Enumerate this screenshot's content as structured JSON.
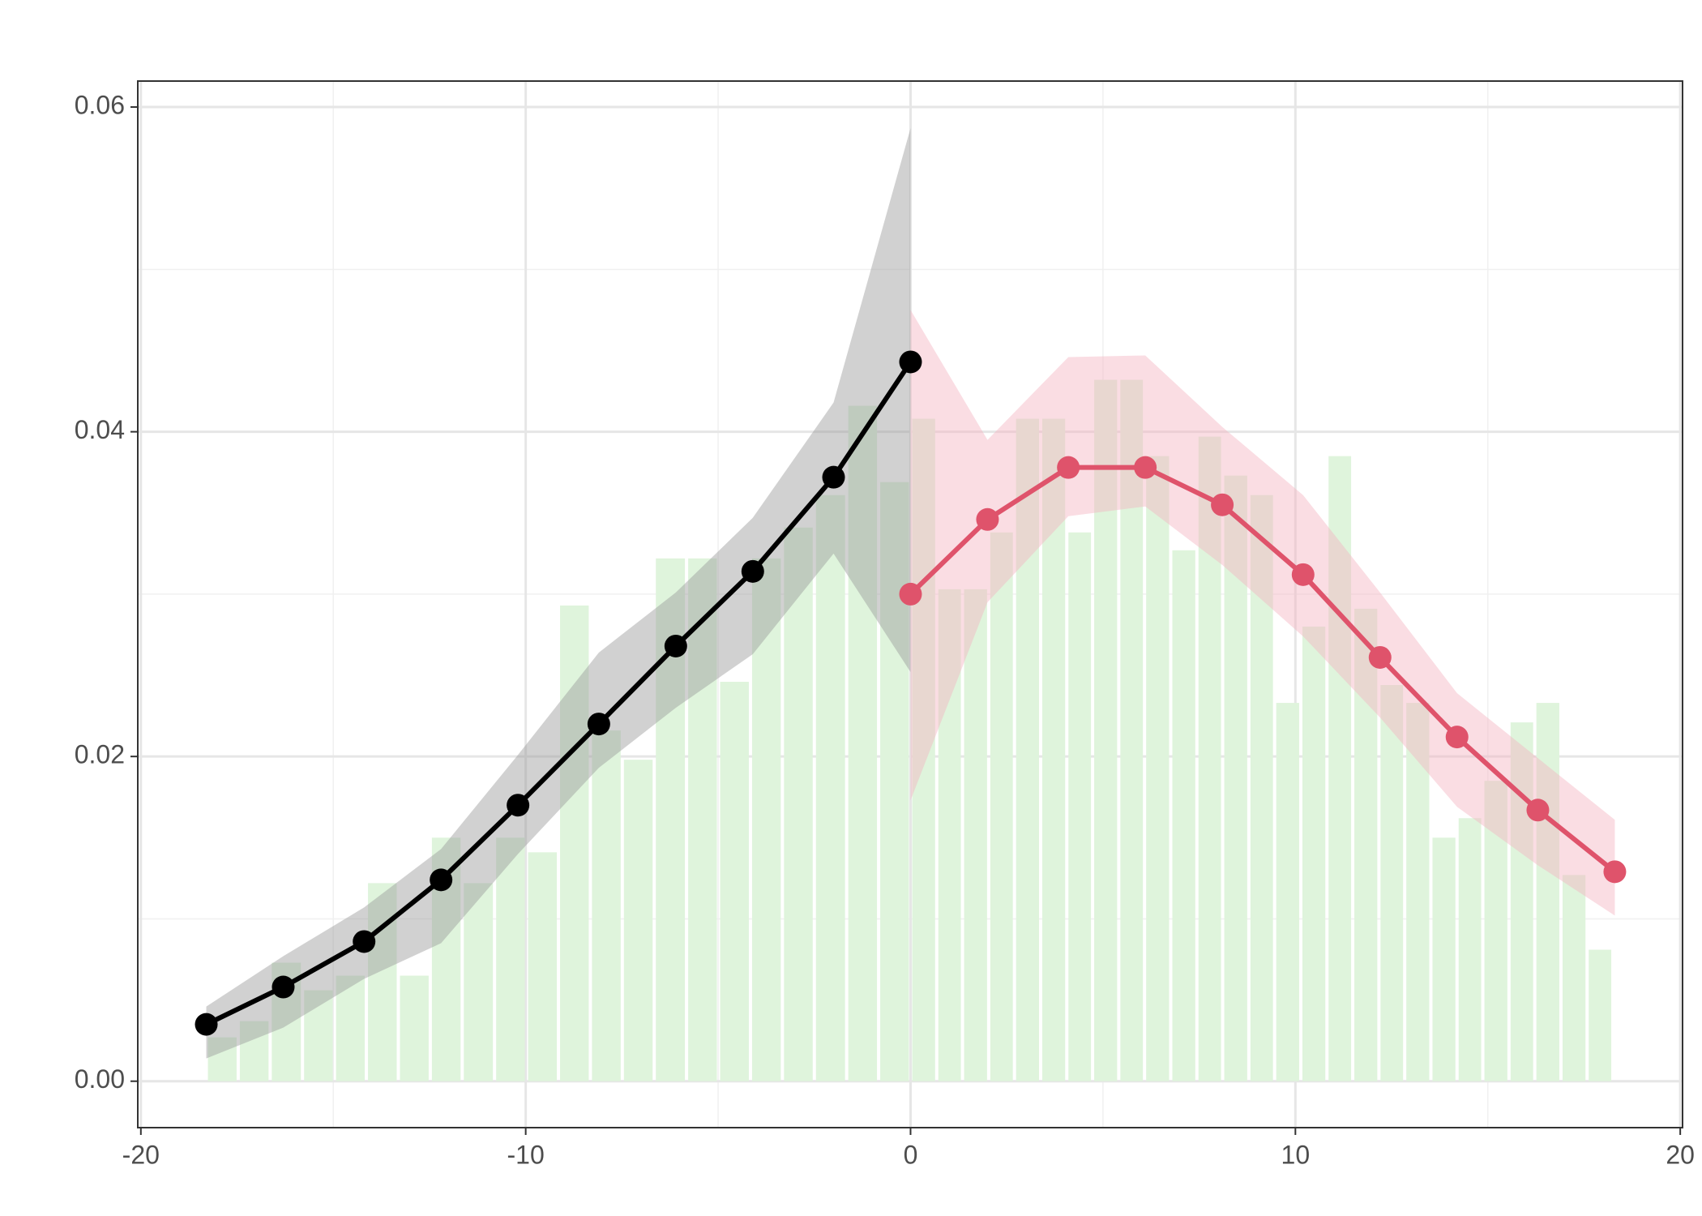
{
  "chart_data": {
    "type": "histogram",
    "bins": [
      -18.3,
      -17.47,
      -16.64,
      -15.8,
      -14.97,
      -14.14,
      -13.31,
      -12.48,
      -11.65,
      -10.81,
      -9.98,
      -9.15,
      -8.32,
      -7.49,
      -6.66,
      -5.82,
      -4.99,
      -4.16,
      -3.33,
      -2.5,
      -1.66,
      -0.83,
      0,
      0.68,
      1.35,
      2.03,
      2.7,
      3.38,
      4.06,
      4.73,
      5.41,
      6.08,
      6.76,
      7.44,
      8.11,
      8.79,
      9.46,
      10.14,
      10.82,
      11.49,
      12.17,
      12.84,
      13.52,
      14.2,
      14.87,
      15.55,
      16.22,
      16.9,
      17.58,
      18.25
    ],
    "counts": [
      0.0027,
      0.0037,
      0.0073,
      0.0056,
      0.0065,
      0.0122,
      0.0065,
      0.015,
      0.0122,
      0.015,
      0.0141,
      0.0293,
      0.0216,
      0.0198,
      0.0322,
      0.0322,
      0.0246,
      0.0322,
      0.0341,
      0.0361,
      0.0416,
      0.0369,
      0.0408,
      0.0303,
      0.0303,
      0.0338,
      0.0408,
      0.0408,
      0.0338,
      0.0432,
      0.0432,
      0.0385,
      0.0327,
      0.0397,
      0.0373,
      0.0361,
      0.0233,
      0.028,
      0.0385,
      0.0291,
      0.0244,
      0.0233,
      0.015,
      0.0162,
      0.0185,
      0.0221,
      0.0233,
      0.0127,
      0.0081
    ],
    "color": "#dff4dc",
    "series": [
      {
        "color": "#000000",
        "band_color": "#9a9a9a",
        "x": [
          -18.3,
          -16.3,
          -14.2,
          -12.2,
          -10.2,
          -8.1,
          -6.1,
          -4.1,
          -2.0,
          0
        ],
        "values": [
          0.0035,
          0.0058,
          0.0086,
          0.0124,
          0.017,
          0.022,
          0.0268,
          0.0314,
          0.0372,
          0.0443
        ],
        "upper": [
          0.0046,
          0.0077,
          0.0107,
          0.0143,
          0.0201,
          0.0264,
          0.0301,
          0.0347,
          0.0418,
          0.0587
        ],
        "lower": [
          0.0014,
          0.0033,
          0.0063,
          0.0085,
          0.014,
          0.0193,
          0.023,
          0.0263,
          0.0325,
          0.0252
        ]
      },
      {
        "color": "#df536b",
        "band_color": "#f4b4c0",
        "x": [
          0,
          2.0,
          4.1,
          6.1,
          8.1,
          10.2,
          12.2,
          14.2,
          16.3,
          18.3
        ],
        "values": [
          0.03,
          0.0346,
          0.0378,
          0.0378,
          0.0355,
          0.0312,
          0.0261,
          0.0212,
          0.0167,
          0.0129
        ],
        "upper": [
          0.0475,
          0.0395,
          0.0446,
          0.0447,
          0.0403,
          0.0361,
          0.0301,
          0.0239,
          0.0199,
          0.0161
        ],
        "lower": [
          0.0173,
          0.0295,
          0.0348,
          0.0354,
          0.0318,
          0.0274,
          0.0224,
          0.0169,
          0.0133,
          0.0102
        ]
      }
    ],
    "xlim": [
      -20.08,
      20.06
    ],
    "ylim": [
      -0.00286,
      0.0616
    ],
    "xticks": [
      -20,
      -10,
      0,
      10,
      20
    ],
    "yticks": [
      {
        "value": 0,
        "label": "0.00"
      },
      0.02,
      0.04,
      0.06
    ],
    "xminor": [
      -15,
      -5,
      5,
      15
    ],
    "yminor": [
      0.01,
      0.03,
      0.05
    ],
    "grid": true
  }
}
